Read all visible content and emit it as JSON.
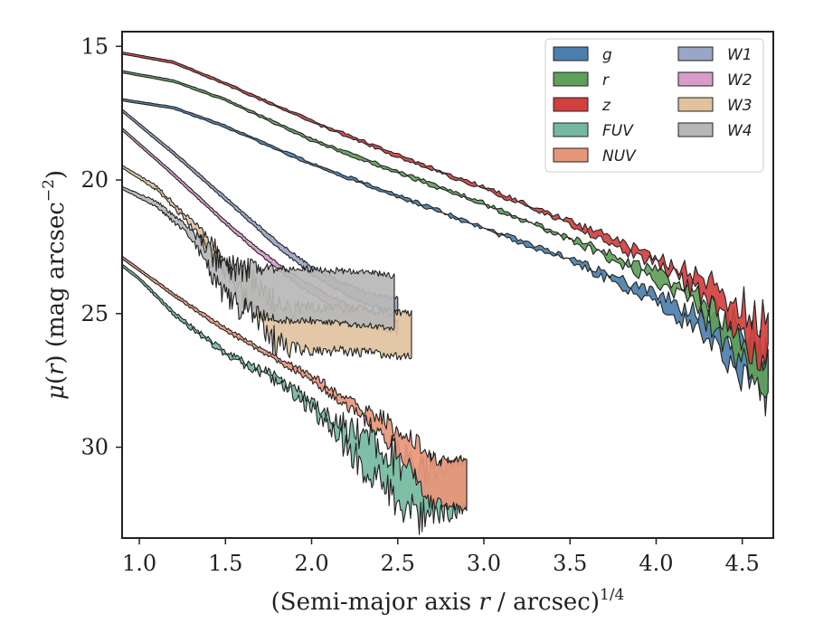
{
  "chart_data": {
    "type": "area",
    "xlabel": "(Semi-major axis r / arcsec)",
    "xlabel_var": "r",
    "xlabel_exponent": "1/4",
    "ylabel": "μ(r) (mag arcsec",
    "ylabel_var": "r",
    "ylabel_exponent": "−2",
    "xlim": [
      0.9,
      4.68
    ],
    "ylim": [
      33.4,
      14.45
    ],
    "y_inverted": true,
    "xticks": [
      1.0,
      1.5,
      2.0,
      2.5,
      3.0,
      3.5,
      4.0,
      4.5
    ],
    "xtick_labels": [
      "1.0",
      "1.5",
      "2.0",
      "2.5",
      "3.0",
      "3.5",
      "4.0",
      "4.5"
    ],
    "yticks": [
      15,
      20,
      25,
      30
    ],
    "ytick_labels": [
      "15",
      "20",
      "25",
      "30"
    ],
    "grid": false,
    "legend": {
      "location": "upper right",
      "columns": 2
    },
    "series": [
      {
        "name": "g",
        "color": "#4c7fae",
        "center": [
          [
            0.9,
            17.0
          ],
          [
            1.2,
            17.3
          ],
          [
            1.5,
            18.0
          ],
          [
            2.0,
            19.4
          ],
          [
            2.5,
            20.6
          ],
          [
            3.0,
            21.8
          ],
          [
            3.5,
            23.0
          ],
          [
            4.0,
            24.4
          ],
          [
            4.25,
            25.3
          ],
          [
            4.45,
            26.5
          ],
          [
            4.6,
            27.3
          ],
          [
            4.65,
            27.3
          ]
        ],
        "width": [
          [
            0.9,
            0.08
          ],
          [
            3.5,
            0.12
          ],
          [
            3.9,
            0.3
          ],
          [
            4.2,
            0.5
          ],
          [
            4.4,
            0.8
          ],
          [
            4.55,
            1.3
          ],
          [
            4.65,
            1.4
          ]
        ],
        "noise": [
          [
            0.9,
            0.0
          ],
          [
            3.3,
            0.08
          ],
          [
            4.0,
            0.25
          ],
          [
            4.4,
            0.6
          ],
          [
            4.65,
            0.9
          ]
        ]
      },
      {
        "name": "r",
        "color": "#5ea05a",
        "center": [
          [
            0.9,
            15.95
          ],
          [
            1.2,
            16.3
          ],
          [
            1.5,
            17.0
          ],
          [
            2.0,
            18.5
          ],
          [
            2.5,
            19.7
          ],
          [
            3.0,
            20.9
          ],
          [
            3.5,
            22.2
          ],
          [
            4.0,
            23.6
          ],
          [
            4.25,
            24.6
          ],
          [
            4.45,
            25.9
          ],
          [
            4.6,
            26.9
          ],
          [
            4.65,
            27.0
          ]
        ],
        "width": [
          [
            0.9,
            0.08
          ],
          [
            3.5,
            0.12
          ],
          [
            3.9,
            0.3
          ],
          [
            4.2,
            0.5
          ],
          [
            4.4,
            0.8
          ],
          [
            4.55,
            1.2
          ],
          [
            4.65,
            1.3
          ]
        ],
        "noise": [
          [
            0.9,
            0.0
          ],
          [
            3.3,
            0.08
          ],
          [
            4.0,
            0.25
          ],
          [
            4.4,
            0.6
          ],
          [
            4.65,
            0.9
          ]
        ]
      },
      {
        "name": "z",
        "color": "#d0403f",
        "center": [
          [
            0.9,
            15.25
          ],
          [
            1.2,
            15.6
          ],
          [
            1.5,
            16.4
          ],
          [
            2.0,
            17.8
          ],
          [
            2.5,
            19.1
          ],
          [
            3.0,
            20.3
          ],
          [
            3.5,
            21.6
          ],
          [
            4.0,
            23.0
          ],
          [
            4.25,
            23.9
          ],
          [
            4.45,
            25.1
          ],
          [
            4.6,
            25.9
          ],
          [
            4.65,
            25.9
          ]
        ],
        "width": [
          [
            0.9,
            0.08
          ],
          [
            3.5,
            0.12
          ],
          [
            3.9,
            0.3
          ],
          [
            4.2,
            0.5
          ],
          [
            4.35,
            0.9
          ],
          [
            4.5,
            1.4
          ],
          [
            4.65,
            1.6
          ]
        ],
        "noise": [
          [
            0.9,
            0.0
          ],
          [
            3.3,
            0.08
          ],
          [
            4.0,
            0.25
          ],
          [
            4.4,
            0.6
          ],
          [
            4.65,
            0.9
          ]
        ]
      },
      {
        "name": "FUV",
        "color": "#74b8a0",
        "center": [
          [
            0.9,
            23.2
          ],
          [
            1.0,
            23.7
          ],
          [
            1.2,
            25.0
          ],
          [
            1.5,
            26.5
          ],
          [
            1.8,
            27.5
          ],
          [
            2.0,
            28.4
          ],
          [
            2.2,
            29.6
          ],
          [
            2.4,
            30.7
          ],
          [
            2.6,
            31.7
          ],
          [
            2.75,
            31.6
          ],
          [
            2.9,
            31.4
          ]
        ],
        "width": [
          [
            0.9,
            0.1
          ],
          [
            1.6,
            0.15
          ],
          [
            2.0,
            0.3
          ],
          [
            2.2,
            0.7
          ],
          [
            2.4,
            1.3
          ],
          [
            2.6,
            1.8
          ],
          [
            2.9,
            1.8
          ]
        ],
        "noise": [
          [
            0.9,
            0.0
          ],
          [
            1.5,
            0.1
          ],
          [
            2.0,
            0.3
          ],
          [
            2.3,
            0.7
          ],
          [
            2.6,
            0.8
          ],
          [
            2.9,
            0.2
          ]
        ]
      },
      {
        "name": "NUV",
        "color": "#e8967a",
        "center": [
          [
            0.9,
            22.9
          ],
          [
            1.2,
            24.3
          ],
          [
            1.5,
            25.6
          ],
          [
            1.8,
            26.7
          ],
          [
            2.0,
            27.4
          ],
          [
            2.2,
            28.3
          ],
          [
            2.4,
            29.2
          ],
          [
            2.55,
            30.0
          ],
          [
            2.7,
            31.3
          ],
          [
            2.9,
            31.4
          ]
        ],
        "width": [
          [
            0.9,
            0.1
          ],
          [
            1.6,
            0.15
          ],
          [
            2.0,
            0.2
          ],
          [
            2.3,
            0.4
          ],
          [
            2.5,
            0.8
          ],
          [
            2.65,
            1.6
          ],
          [
            2.9,
            1.8
          ]
        ],
        "noise": [
          [
            0.9,
            0.0
          ],
          [
            1.8,
            0.08
          ],
          [
            2.2,
            0.2
          ],
          [
            2.5,
            0.4
          ],
          [
            2.7,
            0.3
          ],
          [
            2.9,
            0.1
          ]
        ]
      },
      {
        "name": "W1",
        "color": "#9aa6c6",
        "center": [
          [
            0.9,
            17.4
          ],
          [
            1.2,
            19.0
          ],
          [
            1.5,
            20.7
          ],
          [
            1.8,
            22.4
          ],
          [
            2.0,
            23.4
          ],
          [
            2.2,
            24.1
          ],
          [
            2.35,
            24.5
          ],
          [
            2.5,
            24.7
          ]
        ],
        "width": [
          [
            0.9,
            0.1
          ],
          [
            1.6,
            0.15
          ],
          [
            2.0,
            0.3
          ],
          [
            2.5,
            0.5
          ]
        ],
        "noise": [
          [
            0.9,
            0.0
          ],
          [
            2.0,
            0.05
          ],
          [
            2.5,
            0.1
          ]
        ]
      },
      {
        "name": "W2",
        "color": "#d99cc9",
        "center": [
          [
            0.9,
            18.1
          ],
          [
            1.2,
            19.8
          ],
          [
            1.5,
            21.6
          ],
          [
            1.7,
            22.7
          ],
          [
            1.9,
            23.7
          ],
          [
            2.1,
            24.5
          ],
          [
            2.3,
            25.1
          ],
          [
            2.5,
            25.5
          ]
        ],
        "width": [
          [
            0.9,
            0.1
          ],
          [
            1.6,
            0.15
          ],
          [
            2.0,
            0.3
          ],
          [
            2.5,
            0.5
          ]
        ],
        "noise": [
          [
            0.9,
            0.0
          ],
          [
            2.0,
            0.05
          ],
          [
            2.5,
            0.1
          ]
        ]
      },
      {
        "name": "W3",
        "color": "#e0c39e",
        "center": [
          [
            0.9,
            19.5
          ],
          [
            1.1,
            20.3
          ],
          [
            1.3,
            21.6
          ],
          [
            1.45,
            22.8
          ],
          [
            1.6,
            23.8
          ],
          [
            1.75,
            25.1
          ],
          [
            1.85,
            25.5
          ],
          [
            2.0,
            25.6
          ],
          [
            2.2,
            25.6
          ],
          [
            2.4,
            25.7
          ],
          [
            2.5,
            25.8
          ],
          [
            2.58,
            25.8
          ]
        ],
        "width": [
          [
            0.9,
            0.1
          ],
          [
            1.3,
            0.2
          ],
          [
            1.5,
            0.5
          ],
          [
            1.7,
            1.4
          ],
          [
            1.85,
            1.6
          ],
          [
            2.2,
            1.6
          ],
          [
            2.58,
            1.6
          ]
        ],
        "noise": [
          [
            0.9,
            0.0
          ],
          [
            1.3,
            0.1
          ],
          [
            1.5,
            0.4
          ],
          [
            1.8,
            0.6
          ],
          [
            2.0,
            0.2
          ],
          [
            2.58,
            0.15
          ]
        ]
      },
      {
        "name": "W4",
        "color": "#b7b7b7",
        "center": [
          [
            0.9,
            20.3
          ],
          [
            1.1,
            20.9
          ],
          [
            1.3,
            22.0
          ],
          [
            1.4,
            23.0
          ],
          [
            1.5,
            23.8
          ],
          [
            1.6,
            24.1
          ],
          [
            1.8,
            24.3
          ],
          [
            2.0,
            24.3
          ],
          [
            2.2,
            24.4
          ],
          [
            2.4,
            24.5
          ],
          [
            2.48,
            24.6
          ]
        ],
        "width": [
          [
            0.9,
            0.1
          ],
          [
            1.3,
            0.3
          ],
          [
            1.45,
            0.9
          ],
          [
            1.6,
            1.5
          ],
          [
            1.8,
            1.9
          ],
          [
            2.48,
            2.0
          ]
        ],
        "noise": [
          [
            0.9,
            0.0
          ],
          [
            1.3,
            0.1
          ],
          [
            1.45,
            0.5
          ],
          [
            1.6,
            0.5
          ],
          [
            1.8,
            0.15
          ],
          [
            2.48,
            0.1
          ]
        ]
      }
    ]
  }
}
